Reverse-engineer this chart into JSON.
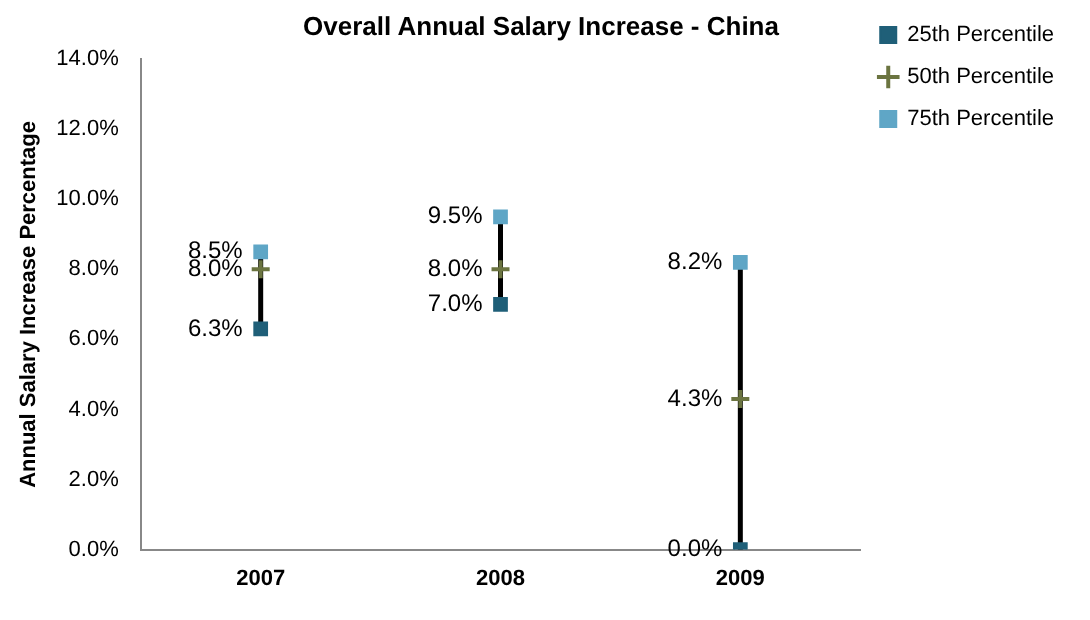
{
  "chart_data": {
    "type": "scatter",
    "title": "Overall Annual Salary Increase - China",
    "ylabel": "Annual Salary Increase Percentage",
    "categories": [
      "2007",
      "2008",
      "2009"
    ],
    "series": [
      {
        "name": "25th Percentile",
        "color": "#1f5f78",
        "marker": "square",
        "values": [
          6.3,
          7.0,
          0.0
        ],
        "value_labels": [
          "6.3%",
          "7.0%",
          "0.0%"
        ]
      },
      {
        "name": "50th Percentile",
        "color": "#6b7440",
        "marker": "cross",
        "values": [
          8.0,
          8.0,
          4.3
        ],
        "value_labels": [
          "8.0%",
          "8.0%",
          "4.3%"
        ]
      },
      {
        "name": "75th Percentile",
        "color": "#5fa6c6",
        "marker": "square",
        "values": [
          8.5,
          9.5,
          8.2
        ],
        "value_labels": [
          "8.5%",
          "9.5%",
          "8.2%"
        ]
      }
    ],
    "ylim": [
      0,
      14
    ],
    "yticks": [
      {
        "value": 0,
        "label": "0.0%"
      },
      {
        "value": 2,
        "label": "2.0%"
      },
      {
        "value": 4,
        "label": "4.0%"
      },
      {
        "value": 6,
        "label": "6.0%"
      },
      {
        "value": 8,
        "label": "8.0%"
      },
      {
        "value": 10,
        "label": "10.0%"
      },
      {
        "value": 12,
        "label": "12.0%"
      },
      {
        "value": 14,
        "label": "14.0%"
      }
    ],
    "grid": false,
    "legend": "right"
  }
}
